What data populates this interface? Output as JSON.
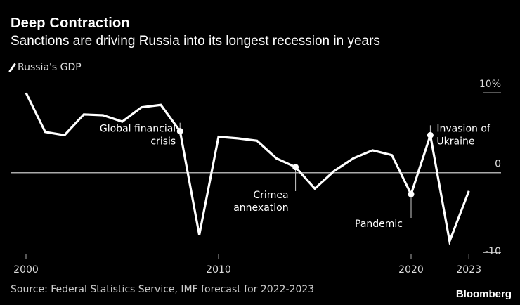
{
  "header": {
    "title": "Deep Contraction",
    "subtitle": "Sanctions are driving Russia into its longest recession in years"
  },
  "footer": {
    "source": "Source: Federal Statistics Service, IMF forecast for 2022-2023",
    "logo": "Bloomberg"
  },
  "chart_data": {
    "type": "line",
    "title": "Deep Contraction",
    "subtitle": "Sanctions are driving Russia into its longest recession in years",
    "legend": "top-left",
    "series": [
      {
        "name": "Russia's GDP",
        "color": "#ffffff",
        "x": [
          2000,
          2001,
          2002,
          2003,
          2004,
          2005,
          2006,
          2007,
          2008,
          2009,
          2010,
          2011,
          2012,
          2013,
          2014,
          2015,
          2016,
          2017,
          2018,
          2019,
          2020,
          2021,
          2022,
          2023
        ],
        "values": [
          10.0,
          5.1,
          4.7,
          7.3,
          7.2,
          6.4,
          8.2,
          8.5,
          5.2,
          -7.8,
          4.5,
          4.3,
          4.0,
          1.8,
          0.7,
          -2.0,
          0.2,
          1.8,
          2.8,
          2.2,
          -2.7,
          4.7,
          -8.6,
          -2.3
        ]
      }
    ],
    "xticks": [
      {
        "value": 2000,
        "label": "2000"
      },
      {
        "value": 2010,
        "label": "2010"
      },
      {
        "value": 2020,
        "label": "2020"
      },
      {
        "value": 2023,
        "label": "2023"
      }
    ],
    "yticks": [
      {
        "value": 10,
        "label": "10%"
      },
      {
        "value": 0,
        "label": "0"
      },
      {
        "value": -10,
        "label": "-10"
      }
    ],
    "ylim": [
      -10,
      10
    ],
    "xlim": [
      2000,
      2023
    ],
    "annotations": [
      {
        "x": 2008,
        "lines": [
          "Global financial",
          "crisis"
        ],
        "pos": "left"
      },
      {
        "x": 2014,
        "lines": [
          "Crimea",
          "annexation"
        ],
        "pos": "below"
      },
      {
        "x": 2020,
        "lines": [
          "Pandemic"
        ],
        "pos": "below"
      },
      {
        "x": 2021,
        "lines": [
          "Invasion of",
          "Ukraine"
        ],
        "pos": "right"
      }
    ]
  }
}
